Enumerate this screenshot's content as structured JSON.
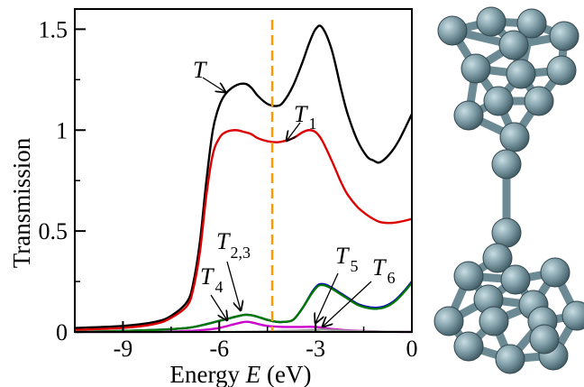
{
  "chart_data": {
    "type": "line",
    "xlabel_prefix": "Energy ",
    "xlabel_var": "E",
    "xlabel_suffix": " (eV)",
    "ylabel": "Transmission",
    "xlim": [
      -10.5,
      0
    ],
    "ylim": [
      0,
      1.6
    ],
    "x_ticks": [
      -9,
      -6,
      -3,
      0
    ],
    "x_tick_labels": [
      "-9",
      "-6",
      "-3",
      "0"
    ],
    "y_ticks": [
      0,
      0.5,
      1,
      1.5
    ],
    "y_tick_labels": [
      "0",
      "0.5",
      "1",
      "1.5"
    ],
    "grid": false,
    "fermi_line": {
      "x": -4.35,
      "color": "#ff9900"
    },
    "series": [
      {
        "key": "T",
        "color": "#000000",
        "x": [
          -10.5,
          -9,
          -8,
          -7.5,
          -7,
          -6.8,
          -6.6,
          -6.4,
          -6.2,
          -6,
          -5.8,
          -5.5,
          -5.2,
          -5,
          -4.8,
          -4.5,
          -4.2,
          -4,
          -3.7,
          -3.4,
          -3.2,
          -3,
          -2.8,
          -2.5,
          -2.2,
          -2,
          -1.7,
          -1.4,
          -1.2,
          -1,
          -0.7,
          -0.4,
          0
        ],
        "y": [
          0.02,
          0.03,
          0.05,
          0.08,
          0.15,
          0.25,
          0.45,
          0.75,
          1.0,
          1.12,
          1.18,
          1.22,
          1.23,
          1.21,
          1.17,
          1.13,
          1.12,
          1.14,
          1.22,
          1.34,
          1.43,
          1.5,
          1.51,
          1.4,
          1.2,
          1.08,
          0.95,
          0.87,
          0.85,
          0.84,
          0.88,
          0.95,
          1.08
        ]
      },
      {
        "key": "T1",
        "color": "#dd0000",
        "x": [
          -10.5,
          -9,
          -8,
          -7.5,
          -7,
          -6.8,
          -6.6,
          -6.4,
          -6.2,
          -6,
          -5.8,
          -5.5,
          -5.2,
          -5,
          -4.8,
          -4.5,
          -4.2,
          -4,
          -3.7,
          -3.4,
          -3.2,
          -3,
          -2.8,
          -2.5,
          -2.2,
          -2,
          -1.7,
          -1.4,
          -1.2,
          -1,
          -0.7,
          -0.4,
          0
        ],
        "y": [
          0.01,
          0.02,
          0.04,
          0.07,
          0.13,
          0.22,
          0.4,
          0.68,
          0.88,
          0.96,
          0.99,
          1.0,
          0.99,
          0.98,
          0.96,
          0.945,
          0.94,
          0.945,
          0.96,
          0.99,
          1.0,
          0.99,
          0.95,
          0.85,
          0.74,
          0.68,
          0.62,
          0.58,
          0.56,
          0.545,
          0.54,
          0.545,
          0.56
        ]
      },
      {
        "key": "T23",
        "color": "#cc00cc",
        "x": [
          -10.5,
          -8,
          -7,
          -6.5,
          -6,
          -5.5,
          -5.2,
          -5,
          -4.8,
          -4.5,
          -4,
          -3.5,
          -3,
          -2.5,
          -2,
          -1,
          0
        ],
        "y": [
          0.0,
          0.0,
          0.005,
          0.01,
          0.02,
          0.04,
          0.05,
          0.048,
          0.04,
          0.03,
          0.025,
          0.025,
          0.025,
          0.015,
          0.008,
          0.002,
          0.0
        ]
      },
      {
        "key": "T5",
        "color": "#0000cc",
        "x": [
          -10.5,
          -9,
          -8,
          -7,
          -6.5,
          -6,
          -5.5,
          -5.2,
          -5,
          -4.8,
          -4.5,
          -4.2,
          -4,
          -3.7,
          -3.4,
          -3.1,
          -2.9,
          -2.7,
          -2.5,
          -2.2,
          -2,
          -1.7,
          -1.4,
          -1.1,
          -0.8,
          -0.5,
          -0.2,
          0
        ],
        "y": [
          0.0,
          0.005,
          0.01,
          0.02,
          0.035,
          0.055,
          0.075,
          0.085,
          0.083,
          0.075,
          0.06,
          0.05,
          0.05,
          0.06,
          0.12,
          0.2,
          0.235,
          0.235,
          0.22,
          0.19,
          0.17,
          0.14,
          0.125,
          0.12,
          0.13,
          0.16,
          0.21,
          0.25
        ]
      },
      {
        "key": "T4",
        "color": "#007700",
        "x": [
          -10.5,
          -9,
          -8,
          -7,
          -6.5,
          -6,
          -5.5,
          -5.2,
          -5,
          -4.8,
          -4.5,
          -4.2,
          -4,
          -3.7,
          -3.4,
          -3.1,
          -2.9,
          -2.7,
          -2.5,
          -2.2,
          -2,
          -1.7,
          -1.4,
          -1.1,
          -0.8,
          -0.5,
          -0.2,
          0
        ],
        "y": [
          0.0,
          0.005,
          0.01,
          0.02,
          0.035,
          0.055,
          0.075,
          0.085,
          0.083,
          0.075,
          0.06,
          0.05,
          0.05,
          0.06,
          0.12,
          0.195,
          0.23,
          0.23,
          0.215,
          0.185,
          0.165,
          0.135,
          0.12,
          0.115,
          0.125,
          0.155,
          0.205,
          0.245
        ]
      },
      {
        "key": "T6",
        "color": "#999999",
        "x": [
          -10.5,
          -6,
          -4,
          -3,
          -2.8,
          -2.5,
          -2,
          -1,
          0
        ],
        "y": [
          0.0,
          0.0,
          0.005,
          0.01,
          0.012,
          0.01,
          0.006,
          0.002,
          0.0
        ]
      }
    ],
    "annotations": [
      {
        "key": "T",
        "text": "T",
        "sub": ""
      },
      {
        "key": "T1",
        "text": "T",
        "sub": "1"
      },
      {
        "key": "T23",
        "text": "T",
        "sub": "2,3"
      },
      {
        "key": "T4",
        "text": "T",
        "sub": "4"
      },
      {
        "key": "T5",
        "text": "T",
        "sub": "5"
      },
      {
        "key": "T6",
        "text": "T",
        "sub": "6"
      }
    ]
  },
  "molecule": {
    "atom_color": "#7b99a3",
    "bond_color": "#6c8a94"
  }
}
